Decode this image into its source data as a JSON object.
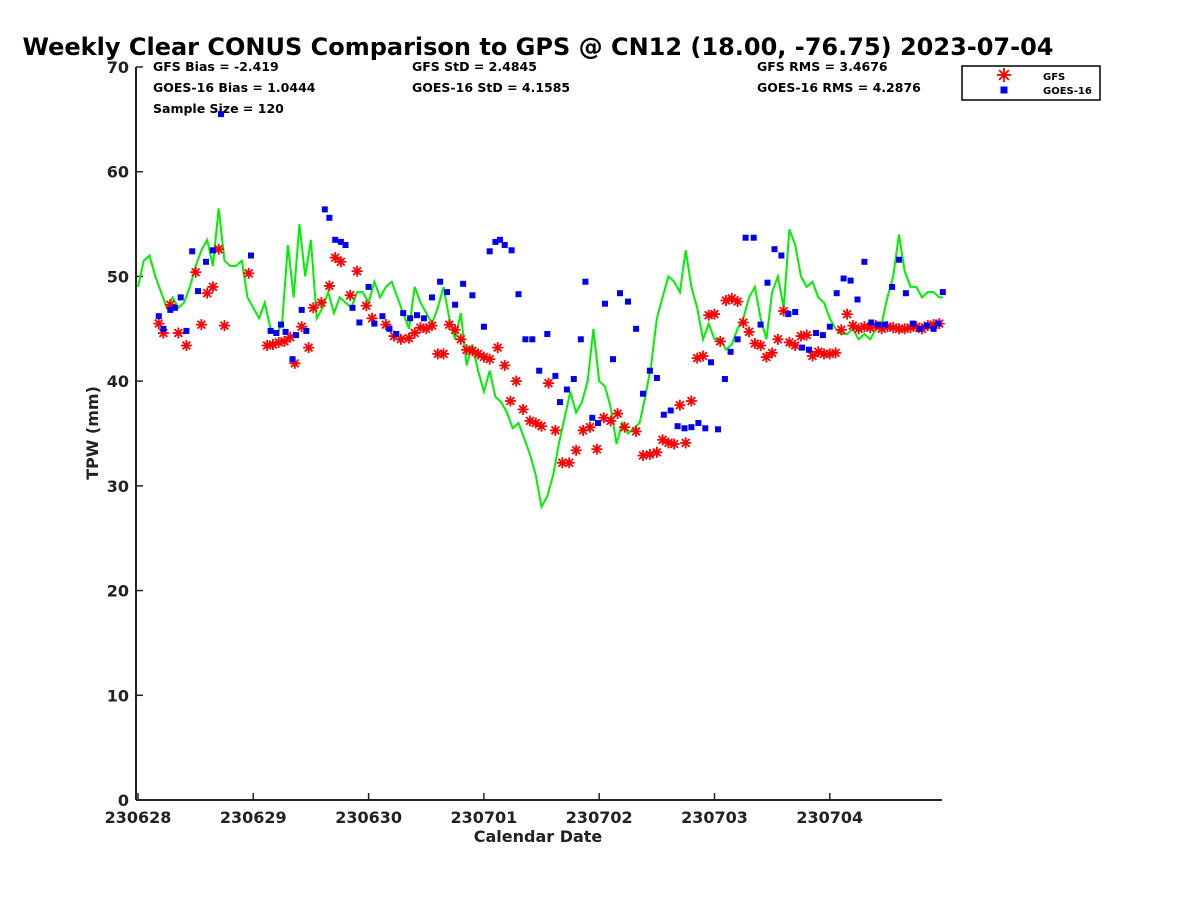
{
  "chart_data": {
    "type": "scatter",
    "title": "Weekly Clear CONUS Comparison to GPS @ CN12 (18.00, -76.75) 2023-07-04",
    "xlabel": "Calendar Date",
    "ylabel": "TPW (mm)",
    "ylim": [
      0,
      70
    ],
    "yticks": [
      "0",
      "10",
      "20",
      "30",
      "40",
      "50",
      "60",
      "70"
    ],
    "xlim": [
      0,
      7
    ],
    "xticks": [
      "230628",
      "230629",
      "230630",
      "230701",
      "230702",
      "230703",
      "230704"
    ],
    "grid": false,
    "legend_position": "top-right",
    "stats": {
      "gfs_bias": "GFS Bias = -2.419",
      "goes_bias": "GOES-16 Bias = 1.0444",
      "sample_size": "Sample Size = 120",
      "gfs_std": "GFS StD = 2.4845",
      "goes_std": "GOES-16 StD = 4.1585",
      "gfs_rms": "GFS RMS = 3.4676",
      "goes_rms": "GOES-16 RMS = 4.2876"
    },
    "series": [
      {
        "type": "line",
        "color": "#00ee00",
        "x": [
          0.0,
          0.05,
          0.1,
          0.15,
          0.2,
          0.25,
          0.3,
          0.35,
          0.4,
          0.45,
          0.5,
          0.55,
          0.6,
          0.65,
          0.7,
          0.75,
          0.8,
          0.85,
          0.9,
          0.95,
          1.0,
          1.05,
          1.1,
          1.15,
          1.2,
          1.25,
          1.3,
          1.35,
          1.4,
          1.45,
          1.5,
          1.55,
          1.6,
          1.65,
          1.7,
          1.75,
          1.8,
          1.85,
          1.9,
          1.95,
          2.0,
          2.05,
          2.1,
          2.15,
          2.2,
          2.25,
          2.3,
          2.35,
          2.4,
          2.45,
          2.5,
          2.55,
          2.6,
          2.65,
          2.7,
          2.75,
          2.8,
          2.85,
          2.9,
          2.95,
          3.0,
          3.05,
          3.1,
          3.15,
          3.2,
          3.25,
          3.3,
          3.35,
          3.4,
          3.45,
          3.5,
          3.55,
          3.6,
          3.65,
          3.7,
          3.75,
          3.8,
          3.85,
          3.9,
          3.95,
          4.0,
          4.05,
          4.1,
          4.15,
          4.2,
          4.25,
          4.3,
          4.35,
          4.4,
          4.45,
          4.5,
          4.55,
          4.6,
          4.65,
          4.7,
          4.75,
          4.8,
          4.85,
          4.9,
          4.95,
          5.0,
          5.05,
          5.1,
          5.15,
          5.2,
          5.25,
          5.3,
          5.35,
          5.4,
          5.45,
          5.5,
          5.55,
          5.6,
          5.65,
          5.7,
          5.75,
          5.8,
          5.85,
          5.9,
          5.95,
          6.0,
          6.05,
          6.1,
          6.15,
          6.2,
          6.25,
          6.3,
          6.35,
          6.4,
          6.45,
          6.5,
          6.55,
          6.6,
          6.65,
          6.7,
          6.75,
          6.8,
          6.85,
          6.9,
          6.95,
          6.98
        ],
        "y": [
          49.0,
          51.5,
          52.0,
          50.0,
          48.5,
          47.0,
          48.0,
          47.0,
          47.5,
          49.0,
          51.0,
          52.5,
          53.5,
          51.0,
          56.5,
          51.5,
          51.0,
          51.0,
          51.5,
          48.0,
          47.0,
          46.0,
          47.5,
          45.0,
          44.5,
          45.5,
          53.0,
          48.0,
          55.0,
          50.0,
          53.5,
          46.0,
          47.0,
          48.5,
          46.5,
          48.0,
          47.5,
          47.0,
          48.5,
          48.5,
          47.5,
          49.5,
          48.0,
          49.0,
          49.5,
          48.0,
          46.5,
          45.0,
          49.0,
          47.5,
          46.5,
          45.5,
          47.0,
          49.0,
          46.0,
          44.0,
          46.5,
          41.5,
          43.5,
          41.0,
          39.0,
          41.0,
          38.5,
          38.0,
          37.0,
          35.5,
          36.0,
          34.5,
          33.0,
          31.0,
          28.0,
          29.0,
          31.0,
          34.0,
          36.5,
          39.0,
          37.0,
          38.0,
          40.0,
          45.0,
          40.0,
          39.5,
          37.5,
          34.0,
          36.0,
          35.0,
          35.5,
          36.0,
          38.5,
          41.5,
          46.0,
          48.0,
          50.0,
          49.5,
          48.5,
          52.5,
          49.0,
          47.0,
          44.0,
          45.5,
          44.0,
          44.0,
          43.0,
          43.5,
          45.0,
          46.0,
          48.0,
          49.0,
          46.0,
          44.0,
          48.5,
          50.0,
          47.0,
          54.5,
          53.0,
          50.0,
          49.0,
          49.5,
          48.0,
          47.5,
          46.0,
          45.0,
          44.5,
          44.5,
          45.0,
          44.0,
          44.5,
          44.0,
          45.0,
          45.5,
          48.0,
          50.0,
          54.0,
          50.5,
          49.0,
          49.0,
          48.0,
          48.5,
          48.5,
          48.0,
          48.0
        ]
      },
      {
        "name": "GFS",
        "type": "scatter",
        "marker": "asterisk",
        "color": "#ff0000",
        "x": [
          0.18,
          0.22,
          0.28,
          0.35,
          0.42,
          0.5,
          0.55,
          0.6,
          0.65,
          0.7,
          0.75,
          0.96,
          1.12,
          1.17,
          1.22,
          1.27,
          1.32,
          1.36,
          1.42,
          1.48,
          1.52,
          1.59,
          1.66,
          1.71,
          1.76,
          1.84,
          1.9,
          1.98,
          2.03,
          2.15,
          2.22,
          2.28,
          2.35,
          2.4,
          2.45,
          2.5,
          2.55,
          2.6,
          2.65,
          2.7,
          2.75,
          2.8,
          2.85,
          2.9,
          2.95,
          3.0,
          3.05,
          3.12,
          3.18,
          3.23,
          3.28,
          3.34,
          3.4,
          3.45,
          3.5,
          3.56,
          3.62,
          3.68,
          3.74,
          3.8,
          3.86,
          3.92,
          3.98,
          4.04,
          4.1,
          4.16,
          4.22,
          4.32,
          4.38,
          4.44,
          4.5,
          4.55,
          4.6,
          4.65,
          4.7,
          4.75,
          4.8,
          4.85,
          4.9,
          4.95,
          5.0,
          5.05,
          5.1,
          5.15,
          5.2,
          5.25,
          5.3,
          5.35,
          5.4,
          5.45,
          5.5,
          5.55,
          5.6,
          5.65,
          5.7,
          5.75,
          5.8,
          5.85,
          5.9,
          5.95,
          6.0,
          6.05,
          6.1,
          6.15,
          6.2,
          6.25,
          6.3,
          6.35,
          6.4,
          6.45,
          6.5,
          6.55,
          6.6,
          6.65,
          6.7,
          6.75,
          6.8,
          6.85,
          6.9,
          6.95
        ],
        "y": [
          45.5,
          44.6,
          47.3,
          44.6,
          43.4,
          50.4,
          45.4,
          48.4,
          49.0,
          52.6,
          45.3,
          50.3,
          43.4,
          43.5,
          43.7,
          43.8,
          44.2,
          41.7,
          45.2,
          43.2,
          47.0,
          47.5,
          49.1,
          51.8,
          51.4,
          48.2,
          50.5,
          47.2,
          46.0,
          45.4,
          44.3,
          44.0,
          44.1,
          44.6,
          45.1,
          45.0,
          45.3,
          42.6,
          42.6,
          45.4,
          44.9,
          44.0,
          43.0,
          42.9,
          42.6,
          42.3,
          42.1,
          43.2,
          41.5,
          38.1,
          40.0,
          37.3,
          36.2,
          36.0,
          35.7,
          39.8,
          35.3,
          32.2,
          32.2,
          33.4,
          35.3,
          35.6,
          33.5,
          36.5,
          36.2,
          36.9,
          35.6,
          35.2,
          32.9,
          33.0,
          33.2,
          34.4,
          34.1,
          34.0,
          37.7,
          34.1,
          38.1,
          42.2,
          42.4,
          46.3,
          46.4,
          43.8,
          47.7,
          47.9,
          47.6,
          45.6,
          44.7,
          43.6,
          43.4,
          42.3,
          42.7,
          44.0,
          46.7,
          43.7,
          43.4,
          44.3,
          44.4,
          42.4,
          42.8,
          42.6,
          42.6,
          42.7,
          44.9,
          46.4,
          45.3,
          45.0,
          45.2,
          45.1,
          45.3,
          45.0,
          45.2,
          45.1,
          45.0,
          45.0,
          45.1,
          45.2,
          45.0,
          45.3,
          45.4,
          45.5
        ]
      },
      {
        "name": "GOES-16",
        "type": "scatter",
        "marker": "square",
        "color": "#0000ee",
        "x": [
          0.18,
          0.22,
          0.28,
          0.32,
          0.37,
          0.42,
          0.47,
          0.52,
          0.59,
          0.65,
          0.72,
          0.98,
          1.15,
          1.2,
          1.24,
          1.28,
          1.34,
          1.37,
          1.42,
          1.46,
          1.62,
          1.66,
          1.71,
          1.76,
          1.8,
          1.86,
          1.92,
          2.0,
          2.05,
          2.12,
          2.18,
          2.24,
          2.3,
          2.36,
          2.42,
          2.48,
          2.55,
          2.62,
          2.68,
          2.75,
          2.82,
          2.9,
          3.0,
          3.05,
          3.1,
          3.14,
          3.18,
          3.24,
          3.3,
          3.36,
          3.42,
          3.48,
          3.55,
          3.62,
          3.66,
          3.72,
          3.78,
          3.84,
          3.88,
          3.94,
          3.99,
          4.05,
          4.12,
          4.18,
          4.25,
          4.32,
          4.38,
          4.44,
          4.5,
          4.56,
          4.62,
          4.68,
          4.74,
          4.8,
          4.86,
          4.92,
          4.97,
          5.03,
          5.09,
          5.14,
          5.2,
          5.27,
          5.34,
          5.4,
          5.46,
          5.52,
          5.58,
          5.64,
          5.7,
          5.76,
          5.82,
          5.88,
          5.94,
          6.0,
          6.06,
          6.12,
          6.18,
          6.24,
          6.3,
          6.36,
          6.42,
          6.48,
          6.54,
          6.6,
          6.66,
          6.72,
          6.78,
          6.84,
          6.9,
          6.94,
          6.98
        ],
        "y": [
          46.2,
          45.0,
          46.8,
          47.0,
          48.0,
          44.8,
          52.4,
          48.6,
          51.4,
          52.5,
          65.5,
          52.0,
          44.8,
          44.6,
          45.4,
          44.7,
          42.1,
          44.4,
          46.8,
          44.8,
          56.4,
          55.6,
          53.5,
          53.3,
          53.0,
          47.0,
          45.6,
          49.0,
          45.5,
          46.2,
          45.0,
          44.5,
          46.5,
          46.0,
          46.3,
          46.0,
          48.0,
          49.5,
          48.5,
          47.3,
          49.3,
          48.2,
          45.2,
          52.4,
          53.3,
          53.5,
          53.0,
          52.5,
          48.3,
          44.0,
          44.0,
          41.0,
          44.5,
          40.5,
          38.0,
          39.2,
          40.2,
          44.0,
          49.5,
          36.5,
          36.0,
          47.4,
          42.1,
          48.4,
          47.6,
          45.0,
          38.8,
          41.0,
          40.3,
          36.8,
          37.2,
          35.7,
          35.5,
          35.6,
          36.0,
          35.5,
          41.8,
          35.4,
          40.2,
          42.8,
          44.0,
          53.7,
          53.7,
          45.4,
          49.4,
          52.6,
          52.0,
          46.4,
          46.6,
          43.2,
          43.0,
          44.6,
          44.4,
          45.2,
          48.4,
          49.8,
          49.6,
          47.8,
          51.4,
          45.6,
          45.4,
          45.4,
          49.0,
          51.6,
          48.4,
          45.5,
          45.0,
          45.3,
          45.0,
          45.5,
          48.5
        ]
      }
    ]
  }
}
